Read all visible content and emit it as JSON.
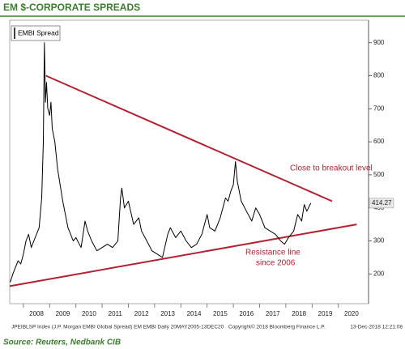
{
  "chart_data": {
    "type": "line",
    "title": "EM $-CORPORATE SPREADS",
    "x": [
      2007.5,
      2007.6,
      2007.7,
      2007.8,
      2007.9,
      2008.0,
      2008.1,
      2008.2,
      2008.3,
      2008.4,
      2008.5,
      2008.6,
      2008.7,
      2008.76,
      2008.8,
      2008.84,
      2008.88,
      2008.93,
      2009.0,
      2009.05,
      2009.1,
      2009.2,
      2009.3,
      2009.4,
      2009.5,
      2009.6,
      2009.7,
      2009.8,
      2009.9,
      2010.0,
      2010.2,
      2010.35,
      2010.45,
      2010.6,
      2010.8,
      2011.0,
      2011.2,
      2011.4,
      2011.6,
      2011.7,
      2011.75,
      2011.85,
      2012.0,
      2012.2,
      2012.4,
      2012.5,
      2012.7,
      2012.9,
      2013.1,
      2013.3,
      2013.5,
      2013.6,
      2013.8,
      2014.0,
      2014.2,
      2014.4,
      2014.6,
      2014.8,
      2015.0,
      2015.1,
      2015.3,
      2015.5,
      2015.7,
      2015.8,
      2015.9,
      2016.0,
      2016.08,
      2016.15,
      2016.3,
      2016.5,
      2016.7,
      2016.85,
      2017.0,
      2017.2,
      2017.4,
      2017.6,
      2017.8,
      2017.95,
      2018.1,
      2018.3,
      2018.45,
      2018.6,
      2018.7,
      2018.8,
      2018.95
    ],
    "series": [
      {
        "name": "EMBI Spread",
        "color": "#000000",
        "values": [
          175,
          200,
          220,
          240,
          230,
          260,
          300,
          320,
          280,
          300,
          320,
          340,
          430,
          600,
          900,
          720,
          780,
          700,
          680,
          720,
          640,
          600,
          520,
          470,
          420,
          380,
          340,
          320,
          300,
          310,
          280,
          360,
          330,
          300,
          270,
          280,
          290,
          280,
          300,
          430,
          460,
          400,
          420,
          350,
          370,
          330,
          300,
          270,
          260,
          250,
          320,
          340,
          310,
          330,
          300,
          280,
          290,
          320,
          380,
          340,
          330,
          370,
          430,
          420,
          450,
          470,
          540,
          480,
          420,
          390,
          360,
          400,
          380,
          340,
          330,
          320,
          300,
          290,
          310,
          330,
          380,
          360,
          410,
          390,
          414.27
        ]
      }
    ],
    "trend_lines": [
      {
        "color": "#b22234",
        "x": [
          2008.86,
          2019.76
        ],
        "values": [
          800,
          420
        ]
      },
      {
        "color": "#b22234",
        "x": [
          2007.48,
          2020.7
        ],
        "values": [
          163,
          350
        ]
      }
    ],
    "last_value": 414.27,
    "annotations": [
      "Close to breakout level",
      "Resistance line",
      "since 2006"
    ],
    "xlim": [
      2007.48,
      2021.15
    ],
    "xticks": [
      2008,
      2009,
      2010,
      2011,
      2012,
      2013,
      2014,
      2015,
      2016,
      2017,
      2018,
      2019,
      2020
    ],
    "ylim": [
      110,
      968
    ],
    "yticks": [
      200,
      300,
      400,
      500,
      600,
      700,
      800,
      900
    ],
    "grid": false
  },
  "footer": {
    "index": "JPEIBLSP Index (J.P. Morgan EMBI Global Spread) EM EMBI  Daily 20MAY2005-13DEC20",
    "copyright": "Copyright© 2018 Bloomberg Finance L.P.",
    "timestamp": "13-Dec-2018 12:21:08"
  },
  "source": "Source: Reuters, Nedbank CIB"
}
